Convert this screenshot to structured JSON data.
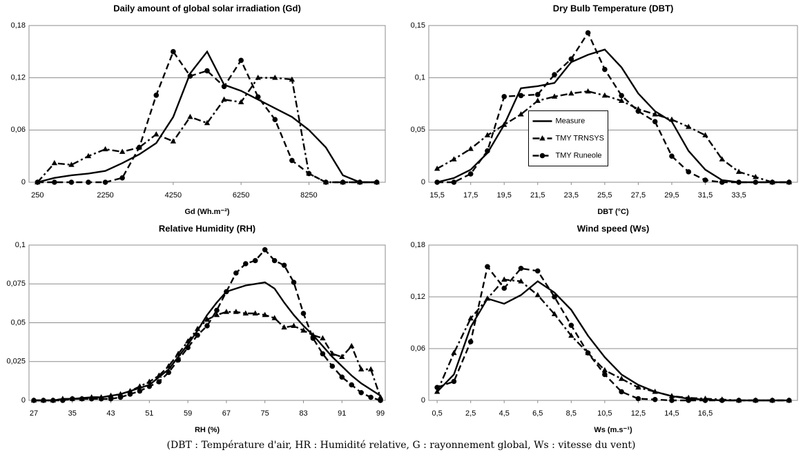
{
  "chart_data": [
    {
      "type": "line",
      "title": "Daily amount of global solar irradiation (Gd)",
      "xlabel": "Gd (Wh.m⁻²)",
      "x": [
        250,
        750,
        1250,
        1750,
        2250,
        2750,
        3250,
        3750,
        4250,
        4750,
        5250,
        5750,
        6250,
        6750,
        7250,
        7750,
        8250,
        8750,
        9250,
        9750,
        10250
      ],
      "xlim": [
        0,
        10500
      ],
      "xticks": [
        250,
        2250,
        4250,
        6250,
        8250
      ],
      "ylim": [
        0,
        0.18
      ],
      "yticks": [
        0,
        {
          "value": 0.06,
          "label": "0,06"
        },
        {
          "value": 0.12,
          "label": "0,12"
        },
        {
          "value": 0.18,
          "label": "0,18"
        }
      ],
      "grid": true,
      "series": [
        {
          "color": "#000000",
          "style": "solid",
          "marker": "none",
          "values": [
            0,
            0.005,
            0.008,
            0.01,
            0.013,
            0.022,
            0.032,
            0.045,
            0.075,
            0.125,
            0.15,
            0.112,
            0.105,
            0.095,
            0.085,
            0.075,
            0.06,
            0.04,
            0.008,
            0,
            0
          ]
        },
        {
          "color": "#000000",
          "style": "dashdot",
          "marker": "triangle",
          "values": [
            0,
            0.022,
            0.02,
            0.03,
            0.038,
            0.035,
            0.04,
            0.055,
            0.047,
            0.075,
            0.068,
            0.095,
            0.092,
            0.12,
            0.12,
            0.118,
            0.01,
            0,
            0,
            0,
            0
          ]
        },
        {
          "color": "#000000",
          "style": "dashed",
          "marker": "circle",
          "values": [
            0,
            0,
            0,
            0,
            0,
            0.005,
            0.04,
            0.1,
            0.15,
            0.122,
            0.128,
            0.11,
            0.14,
            0.098,
            0.072,
            0.025,
            0.01,
            0,
            0,
            0,
            0
          ]
        }
      ]
    },
    {
      "type": "line",
      "title": "Dry Bulb Temperature (DBT)",
      "xlabel": "DBT (°C)",
      "x": [
        15.5,
        16.5,
        17.5,
        18.5,
        19.5,
        20.5,
        21.5,
        22.5,
        23.5,
        24.5,
        25.5,
        26.5,
        27.5,
        28.5,
        29.5,
        30.5,
        31.5,
        32.5,
        33.5,
        34.5,
        35.5,
        36.5
      ],
      "xlim": [
        15,
        37
      ],
      "xticks": [
        {
          "value": 15.5,
          "label": "15,5"
        },
        {
          "value": 17.5,
          "label": "17,5"
        },
        {
          "value": 19.5,
          "label": "19,5"
        },
        {
          "value": 21.5,
          "label": "21,5"
        },
        {
          "value": 23.5,
          "label": "23,5"
        },
        {
          "value": 25.5,
          "label": "25,5"
        },
        {
          "value": 27.5,
          "label": "27,5"
        },
        {
          "value": 29.5,
          "label": "29,5"
        },
        {
          "value": 31.5,
          "label": "31,5"
        },
        {
          "value": 33.5,
          "label": "33,5"
        }
      ],
      "ylim": [
        0,
        0.15
      ],
      "yticks": [
        0,
        {
          "value": 0.05,
          "label": "0,05"
        },
        {
          "value": 0.1,
          "label": "0,1"
        },
        {
          "value": 0.15,
          "label": "0,15"
        }
      ],
      "grid": true,
      "legend": "center",
      "series": [
        {
          "name": "Measure",
          "color": "#000000",
          "style": "solid",
          "marker": "none",
          "values": [
            0,
            0.004,
            0.012,
            0.028,
            0.055,
            0.09,
            0.092,
            0.095,
            0.115,
            0.122,
            0.127,
            0.11,
            0.085,
            0.068,
            0.058,
            0.03,
            0.012,
            0.002,
            0,
            0,
            0,
            0
          ]
        },
        {
          "name": "TMY TRNSYS",
          "color": "#000000",
          "style": "dashdot",
          "marker": "triangle",
          "values": [
            0.013,
            0.022,
            0.032,
            0.045,
            0.055,
            0.065,
            0.078,
            0.082,
            0.085,
            0.087,
            0.083,
            0.078,
            0.07,
            0.065,
            0.06,
            0.053,
            0.045,
            0.022,
            0.01,
            0.005,
            0,
            0
          ]
        },
        {
          "name": "TMY Runeole",
          "color": "#000000",
          "style": "dashed",
          "marker": "circle",
          "values": [
            0,
            0,
            0.008,
            0.03,
            0.082,
            0.083,
            0.084,
            0.103,
            0.118,
            0.143,
            0.108,
            0.083,
            0.068,
            0.058,
            0.025,
            0.01,
            0.002,
            0,
            0,
            0,
            0,
            0
          ]
        }
      ]
    },
    {
      "type": "line",
      "title": "Relative Humidity (RH)",
      "xlabel": "RH (%)",
      "x": [
        27,
        29,
        31,
        33,
        35,
        37,
        39,
        41,
        43,
        45,
        47,
        49,
        51,
        53,
        55,
        57,
        59,
        61,
        63,
        65,
        67,
        69,
        71,
        73,
        75,
        77,
        79,
        81,
        83,
        85,
        87,
        89,
        91,
        93,
        95,
        97,
        99
      ],
      "xlim": [
        26,
        100
      ],
      "xticks": [
        27,
        35,
        43,
        51,
        59,
        67,
        75,
        83,
        91,
        99
      ],
      "ylim": [
        0,
        0.1
      ],
      "yticks": [
        0,
        {
          "value": 0.025,
          "label": "0,025"
        },
        {
          "value": 0.05,
          "label": "0,05"
        },
        {
          "value": 0.075,
          "label": "0,075"
        },
        {
          "value": 0.1,
          "label": "0,1"
        }
      ],
      "grid": true,
      "series": [
        {
          "color": "#000000",
          "style": "solid",
          "marker": "none",
          "values": [
            0,
            0,
            0,
            0.001,
            0.001,
            0.0015,
            0.002,
            0.002,
            0.003,
            0.004,
            0.006,
            0.008,
            0.01,
            0.015,
            0.02,
            0.028,
            0.036,
            0.045,
            0.055,
            0.063,
            0.07,
            0.072,
            0.074,
            0.075,
            0.076,
            0.072,
            0.063,
            0.055,
            0.048,
            0.042,
            0.035,
            0.028,
            0.022,
            0.016,
            0.011,
            0.007,
            0.003
          ]
        },
        {
          "color": "#000000",
          "style": "dashdot",
          "marker": "triangle",
          "values": [
            0,
            0,
            0,
            0.001,
            0.001,
            0.001,
            0.002,
            0.002,
            0.003,
            0.004,
            0.006,
            0.009,
            0.012,
            0.016,
            0.022,
            0.03,
            0.038,
            0.046,
            0.052,
            0.055,
            0.057,
            0.057,
            0.056,
            0.056,
            0.055,
            0.053,
            0.047,
            0.048,
            0.045,
            0.042,
            0.04,
            0.03,
            0.028,
            0.035,
            0.02,
            0.02,
            0.002
          ]
        },
        {
          "color": "#000000",
          "style": "dashed",
          "marker": "circle",
          "values": [
            0,
            0,
            0,
            0,
            0.001,
            0.001,
            0.001,
            0.001,
            0.001,
            0.002,
            0.004,
            0.006,
            0.009,
            0.012,
            0.018,
            0.026,
            0.034,
            0.042,
            0.048,
            0.058,
            0.07,
            0.082,
            0.088,
            0.09,
            0.097,
            0.09,
            0.087,
            0.076,
            0.056,
            0.04,
            0.03,
            0.022,
            0.015,
            0.01,
            0.005,
            0.002,
            0
          ]
        }
      ]
    },
    {
      "type": "line",
      "title": "Wind speed (Ws)",
      "xlabel": "Ws (m.s⁻¹)",
      "x": [
        0.5,
        1.5,
        2.5,
        3.5,
        4.5,
        5.5,
        6.5,
        7.5,
        8.5,
        9.5,
        10.5,
        11.5,
        12.5,
        13.5,
        14.5,
        15.5,
        16.5,
        17.5,
        18.5,
        19.5,
        20.5,
        21.5
      ],
      "xlim": [
        0,
        22
      ],
      "xticks": [
        {
          "value": 0.5,
          "label": "0,5"
        },
        {
          "value": 2.5,
          "label": "2,5"
        },
        {
          "value": 4.5,
          "label": "4,5"
        },
        {
          "value": 6.5,
          "label": "6,5"
        },
        {
          "value": 8.5,
          "label": "8,5"
        },
        {
          "value": 10.5,
          "label": "10,5"
        },
        {
          "value": 12.5,
          "label": "12,5"
        },
        {
          "value": 14.5,
          "label": "14,5"
        },
        {
          "value": 16.5,
          "label": "16,5"
        }
      ],
      "ylim": [
        0,
        0.18
      ],
      "yticks": [
        0,
        {
          "value": 0.06,
          "label": "0,06"
        },
        {
          "value": 0.12,
          "label": "0,12"
        },
        {
          "value": 0.18,
          "label": "0,18"
        }
      ],
      "grid": true,
      "series": [
        {
          "color": "#000000",
          "style": "solid",
          "marker": "none",
          "values": [
            0.01,
            0.03,
            0.085,
            0.118,
            0.112,
            0.122,
            0.138,
            0.125,
            0.105,
            0.075,
            0.05,
            0.03,
            0.018,
            0.01,
            0.005,
            0.002,
            0.001,
            0,
            0,
            0,
            0,
            0
          ]
        },
        {
          "color": "#000000",
          "style": "dashdot",
          "marker": "triangle",
          "values": [
            0.01,
            0.055,
            0.095,
            0.118,
            0.14,
            0.138,
            0.122,
            0.1,
            0.075,
            0.055,
            0.035,
            0.025,
            0.015,
            0.01,
            0.005,
            0.003,
            0.002,
            0.001,
            0,
            0,
            0,
            0
          ]
        },
        {
          "color": "#000000",
          "style": "dashed",
          "marker": "circle",
          "values": [
            0.015,
            0.022,
            0.068,
            0.155,
            0.13,
            0.153,
            0.15,
            0.12,
            0.087,
            0.055,
            0.03,
            0.01,
            0.002,
            0.001,
            0,
            0,
            0,
            0,
            0,
            0,
            0,
            0
          ]
        }
      ]
    }
  ],
  "caption": "(DBT : Température d'air, HR : Humidité relative, G : rayonnement global, Ws : vitesse du vent)"
}
